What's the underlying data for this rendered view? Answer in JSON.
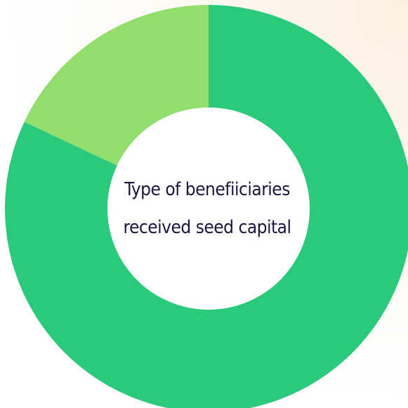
{
  "chart_data": {
    "type": "pie",
    "variant": "donut",
    "title_lines": [
      "Type of benefiiciaries",
      "received seed capital"
    ],
    "slices": [
      {
        "value": 82,
        "color": "#2ac97b"
      },
      {
        "value": 18,
        "color": "#91dd6e"
      }
    ],
    "legend": "none"
  },
  "colors": {
    "center_fill": "#ffffff",
    "title_text": "#1d1440"
  }
}
